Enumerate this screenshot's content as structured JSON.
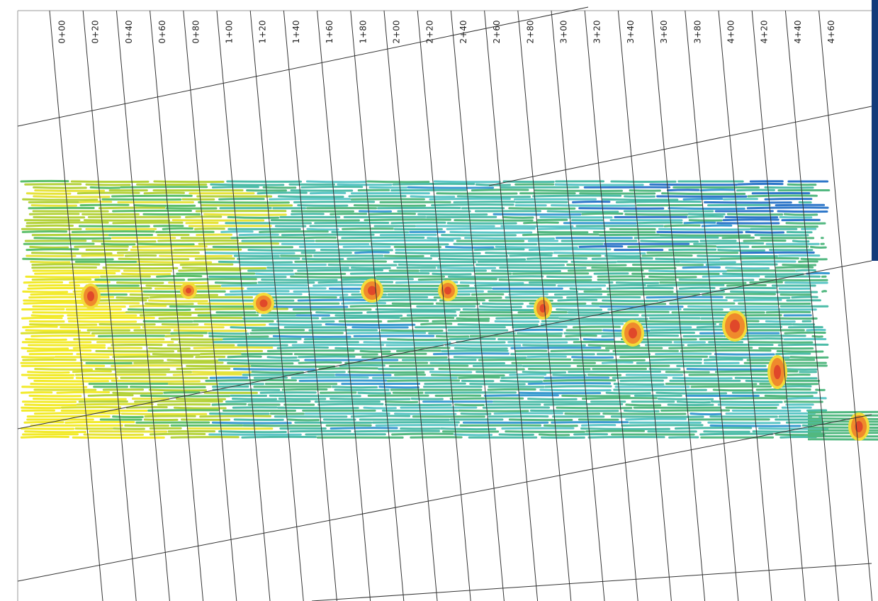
{
  "stations": [
    "0+00",
    "0+20",
    "0+40",
    "0+60",
    "0+80",
    "1+00",
    "1+20",
    "1+40",
    "1+60",
    "1+80",
    "2+00",
    "2+20",
    "2+40",
    "2+60",
    "2+80",
    "3+00",
    "3+20",
    "3+40",
    "3+60",
    "3+80",
    "4+00",
    "4+20",
    "4+40",
    "4+60"
  ]
}
